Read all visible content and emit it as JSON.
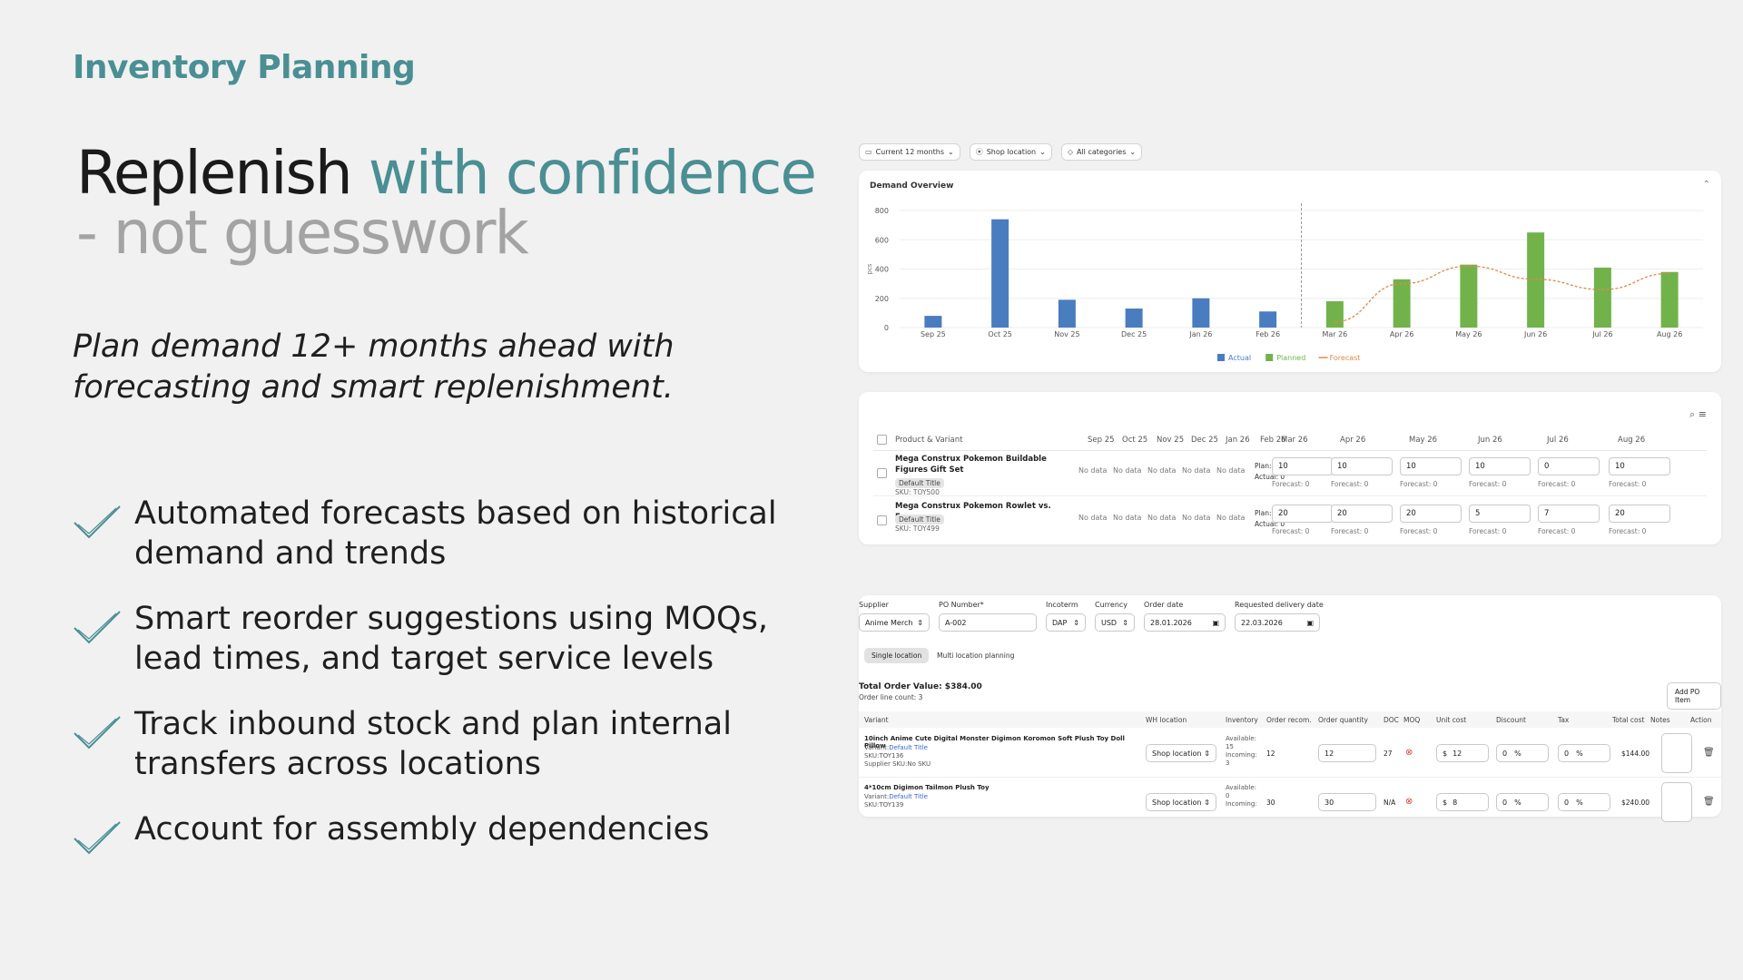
{
  "eyebrow": "Inventory Planning",
  "headline": {
    "part1": "Replenish ",
    "part2": "with confidence",
    "part3": "- not guesswork"
  },
  "lede": "Plan demand 12+ months ahead with forecasting and smart replenishment.",
  "features": [
    "Automated forecasts based on historical demand and trends",
    "Smart reorder suggestions using MOQs, lead times, and target service levels",
    "Track inbound stock and plan internal transfers across locations",
    "Account for assembly dependencies"
  ],
  "filters": [
    {
      "icon": "calendar-icon",
      "label": "Current 12 months"
    },
    {
      "icon": "location-pin-icon",
      "label": "Shop location"
    },
    {
      "icon": "tag-icon",
      "label": "All categories"
    }
  ],
  "demand_panel": {
    "title": "Demand Overview"
  },
  "colors": {
    "accent": "#4a8f94",
    "actual": "#4a7cc0",
    "planned": "#72b24b",
    "forecast": "#e0884a"
  },
  "chart_data": {
    "type": "bar",
    "title": "Demand Overview",
    "ylabel": "pcs",
    "ylim": [
      0,
      800
    ],
    "yticks": [
      0,
      200,
      400,
      600,
      800
    ],
    "categories": [
      "Sep 25",
      "Oct 25",
      "Nov 25",
      "Dec 25",
      "Jan 26",
      "Feb 26",
      "Mar 26",
      "Apr 26",
      "May 26",
      "Jun 26",
      "Jul 26",
      "Aug 26"
    ],
    "series": [
      {
        "name": "Actual",
        "kind": "bar",
        "values": [
          80,
          740,
          190,
          130,
          200,
          110,
          null,
          null,
          null,
          null,
          null,
          null
        ]
      },
      {
        "name": "Planned",
        "kind": "bar",
        "values": [
          null,
          null,
          null,
          null,
          null,
          null,
          180,
          330,
          430,
          650,
          410,
          380
        ]
      },
      {
        "name": "Forecast",
        "kind": "line",
        "values": [
          null,
          null,
          null,
          null,
          null,
          null,
          40,
          300,
          420,
          330,
          260,
          370
        ]
      }
    ],
    "legend": "bottom-center",
    "grid": true,
    "divider_after": "Feb 26"
  },
  "plan_table": {
    "product_header": "Product & Variant",
    "months": [
      "Sep 25",
      "Oct 25",
      "Nov 25",
      "Dec 25",
      "Jan 26",
      "Feb 26",
      "Mar 26",
      "Apr 26",
      "May 26",
      "Jun 26",
      "Jul 26",
      "Aug 26"
    ],
    "rows": [
      {
        "title": "Mega Construx Pokemon Buildable Figures Gift Set",
        "variant": "Default Title",
        "sku": "SKU: TOY500",
        "history": [
          "No data",
          "No data",
          "No data",
          "No data",
          "No data"
        ],
        "plan_label": "Plan: -",
        "actual_label": "Actual: 0",
        "plan": [
          "10",
          "10",
          "10",
          "10",
          "0",
          "10"
        ],
        "forecast": [
          "Forecast: 0",
          "Forecast: 0",
          "Forecast: 0",
          "Forecast: 0",
          "Forecast: 0",
          "Forecast: 0"
        ]
      },
      {
        "title": "Mega Construx Pokemon Rowlet vs. Eevee",
        "variant": "Default Title",
        "sku": "SKU: TOY499",
        "history": [
          "No data",
          "No data",
          "No data",
          "No data",
          "No data"
        ],
        "plan_label": "Plan: -",
        "actual_label": "Actual: 0",
        "plan": [
          "20",
          "20",
          "20",
          "5",
          "7",
          "20"
        ],
        "forecast": [
          "Forecast: 0",
          "Forecast: 0",
          "Forecast: 0",
          "Forecast: 0",
          "Forecast: 0",
          "Forecast: 0"
        ]
      }
    ]
  },
  "po": {
    "supplier_label": "Supplier",
    "supplier": "Anime Merch",
    "po_label": "PO Number*",
    "po_number": "A-002",
    "incoterm_label": "Incoterm",
    "incoterm": "DAP",
    "currency_label": "Currency",
    "currency": "USD",
    "order_date_label": "Order date",
    "order_date": "28.01.2026",
    "delivery_label": "Requested delivery date",
    "delivery_date": "22.03.2026",
    "seg_single": "Single location",
    "seg_multi": "Multi location planning",
    "total": "Total Order Value: $384.00",
    "line_count": "Order line count: 3",
    "add_button": "Add PO Item",
    "headers": [
      "Variant",
      "WH location",
      "Inventory",
      "Order recom.",
      "Order quantity",
      "DOC",
      "MOQ",
      "Unit cost",
      "Discount",
      "Tax",
      "Total cost",
      "Notes",
      "Action"
    ],
    "lines": [
      {
        "title": "10inch Anime Cute Digital Monster Digimon Koromon Soft Plush Toy Doll Pillow",
        "variant_prefix": "Variant:",
        "variant": "Default Title",
        "sku": "SKU:TOY136",
        "supplier_sku": "Supplier SKU:No SKU",
        "location": "Shop location",
        "inv1": "Available:",
        "inv2": "15",
        "inv3": "Incoming:",
        "inv4": "3",
        "recom": "12",
        "qty": "12",
        "doc": "27",
        "unit": "12",
        "disc": "0",
        "tax": "0",
        "total": "$144.00"
      },
      {
        "title": "4*10cm Digimon Tailmon Plush Toy",
        "variant_prefix": "Variant:",
        "variant": "Default Title",
        "sku": "SKU:TOY139",
        "location": "Shop location",
        "inv1": "Available:",
        "inv2": "0",
        "inv3": "Incoming:",
        "recom": "30",
        "qty": "30",
        "doc": "N/A",
        "unit": "8",
        "disc": "0",
        "tax": "0",
        "total": "$240.00"
      }
    ],
    "currency_symbol": "$",
    "percent": "%"
  }
}
